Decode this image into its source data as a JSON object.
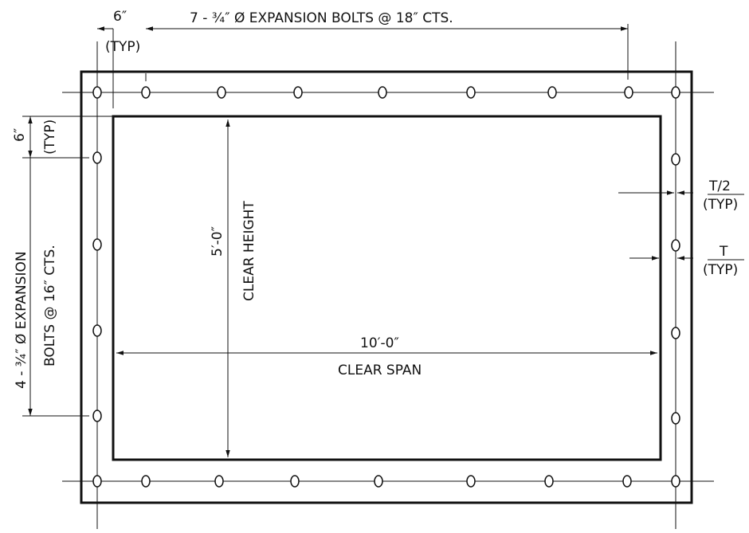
{
  "labels": {
    "top_offset": "6″",
    "top_offset_typ": "(TYP)",
    "top_bolts": "7 - ¾″ Ø EXPANSION BOLTS @ 18″ CTS.",
    "side_offset": "6″",
    "side_offset_typ": "(TYP)",
    "side_bolts_line1": "4 - ¾″ Ø EXPANSION",
    "side_bolts_line2": "BOLTS @ 16″ CTS.",
    "clear_height_dim": "5′-0″",
    "clear_height": "CLEAR HEIGHT",
    "clear_span_dim": "10′-0″",
    "clear_span": "CLEAR SPAN",
    "half_thickness": "T/2",
    "half_thickness_typ": "(TYP)",
    "thickness": "T",
    "thickness_typ": "(TYP)"
  }
}
